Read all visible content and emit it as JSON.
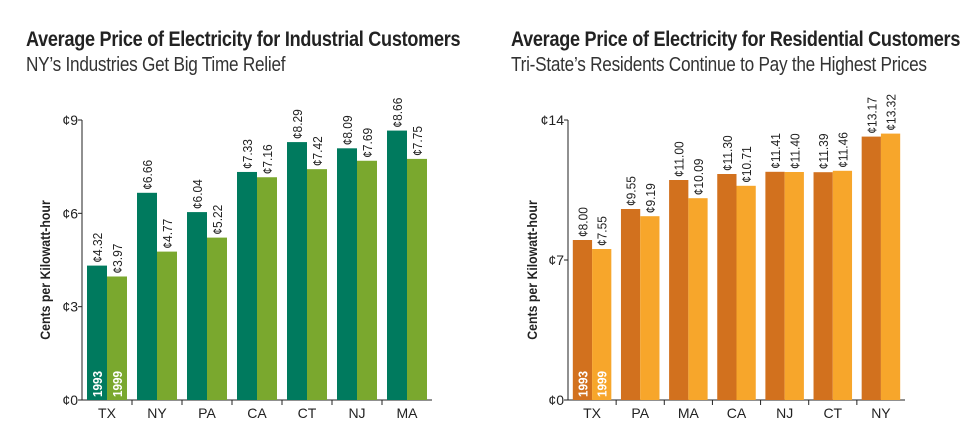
{
  "chart_data": [
    {
      "type": "bar",
      "title": "Average Price of Electricity for Industrial Customers",
      "subtitle": "NY’s Industries Get Big Time Relief",
      "ylabel": "Cents per Kilowatt-hour",
      "xlabel": "",
      "ylim": [
        0,
        9
      ],
      "yticks": [
        "¢0",
        "¢3",
        "¢6",
        "¢9"
      ],
      "ytick_values": [
        0,
        3,
        6,
        9
      ],
      "grid": false,
      "categories": [
        "TX",
        "NY",
        "PA",
        "CA",
        "CT",
        "NJ",
        "MA"
      ],
      "series": [
        {
          "name": "1993",
          "color": "#007a5e",
          "values": [
            4.32,
            6.66,
            6.04,
            7.33,
            8.29,
            8.09,
            8.66
          ],
          "labels": [
            "¢4.32",
            "¢6.66",
            "¢6.04",
            "¢7.33",
            "¢8.29",
            "¢8.09",
            "¢8.66"
          ]
        },
        {
          "name": "1999",
          "color": "#7aa82e",
          "values": [
            3.97,
            4.77,
            5.22,
            7.16,
            7.42,
            7.69,
            7.75
          ],
          "labels": [
            "¢3.97",
            "¢4.77",
            "¢5.22",
            "¢7.16",
            "¢7.42",
            "¢7.69",
            "¢7.75"
          ]
        }
      ]
    },
    {
      "type": "bar",
      "title": "Average Price of Electricity for Residential Customers",
      "subtitle": "Tri-State’s Residents Continue to Pay the Highest Prices",
      "ylabel": "Cents per Kilowatt-hour",
      "xlabel": "",
      "ylim": [
        0,
        14
      ],
      "yticks": [
        "¢0",
        "¢7",
        "¢14"
      ],
      "ytick_values": [
        0,
        7,
        14
      ],
      "grid": false,
      "categories": [
        "TX",
        "PA",
        "MA",
        "CA",
        "NJ",
        "CT",
        "NY"
      ],
      "series": [
        {
          "name": "1993",
          "color": "#d2711e",
          "values": [
            8.0,
            9.55,
            11.0,
            11.3,
            11.41,
            11.39,
            13.17
          ],
          "labels": [
            "¢8.00",
            "¢9.55",
            "¢11.00",
            "¢11.30",
            "¢11.41",
            "¢11.39",
            "¢13.17"
          ]
        },
        {
          "name": "1999",
          "color": "#f7a62b",
          "values": [
            7.55,
            9.19,
            10.09,
            10.71,
            11.4,
            11.46,
            13.32
          ],
          "labels": [
            "¢7.55",
            "¢9.19",
            "¢10.09",
            "¢10.71",
            "¢11.40",
            "¢11.46",
            "¢13.32"
          ]
        }
      ]
    }
  ]
}
